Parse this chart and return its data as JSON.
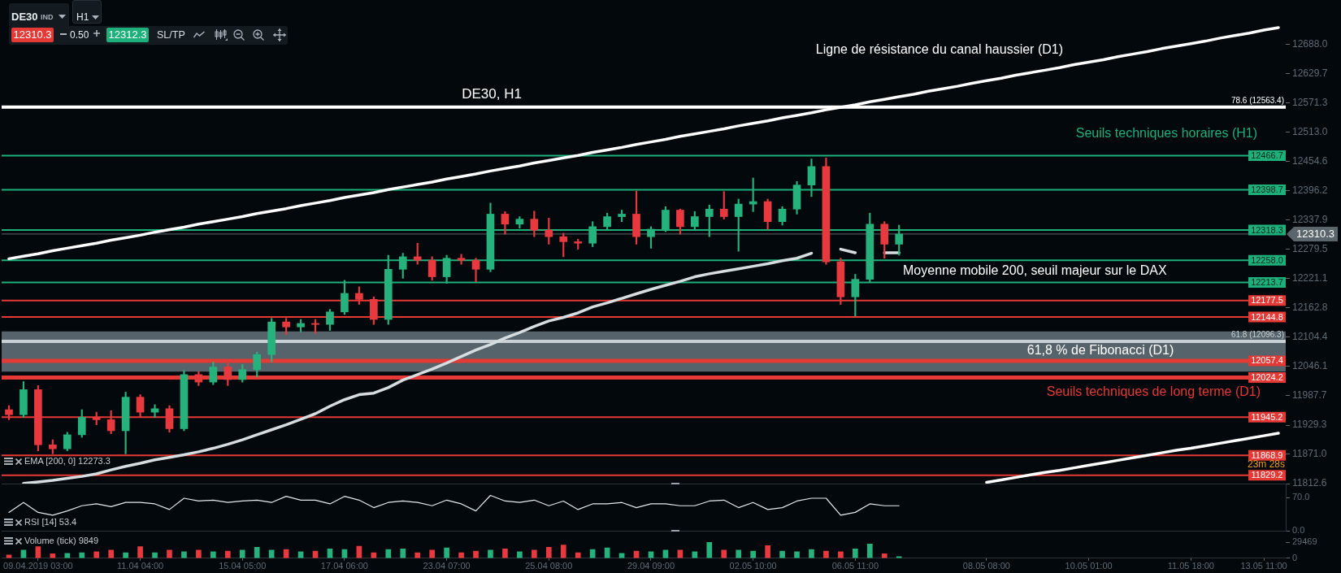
{
  "chart_data": [
    {
      "type": "candlestick",
      "title": "DE30, H1",
      "categories": [
        null,
        null,
        null,
        null,
        null,
        null,
        null,
        null,
        null,
        null,
        null,
        null,
        null,
        null,
        null,
        null,
        null,
        null,
        null,
        null,
        null,
        null,
        null,
        null,
        null,
        null,
        null,
        null,
        null,
        null,
        null,
        null,
        null,
        null,
        null,
        null,
        null,
        null,
        null,
        null,
        null,
        null,
        null,
        null,
        null,
        null,
        null,
        null,
        null,
        null,
        null,
        null,
        null,
        null,
        null,
        null,
        null,
        null,
        null,
        null,
        null,
        null,
        null,
        null,
        null,
        null,
        null,
        null,
        null,
        null,
        null,
        null,
        null,
        null,
        null,
        null,
        null,
        null,
        null,
        null,
        null,
        null,
        null,
        null,
        null,
        null,
        null,
        null
      ],
      "ohlc": [
        [
          11960,
          11968,
          11940,
          11950
        ],
        [
          11950,
          12016,
          11945,
          12000
        ],
        [
          12000,
          12008,
          11878,
          11890
        ],
        [
          11890,
          11900,
          11872,
          11882
        ],
        [
          11882,
          11915,
          11878,
          11910
        ],
        [
          11910,
          11960,
          11905,
          11945
        ],
        [
          11945,
          11955,
          11930,
          11940
        ],
        [
          11940,
          11958,
          11912,
          11918
        ],
        [
          11918,
          11995,
          11872,
          11985
        ],
        [
          11985,
          11990,
          11945,
          11955
        ],
        [
          11955,
          11970,
          11945,
          11962
        ],
        [
          11962,
          11968,
          11915,
          11922
        ],
        [
          11922,
          12038,
          11918,
          12030
        ],
        [
          12030,
          12036,
          12008,
          12015
        ],
        [
          12015,
          12055,
          12010,
          12045
        ],
        [
          12045,
          12052,
          12008,
          12020
        ],
        [
          12020,
          12050,
          12015,
          12040
        ],
        [
          12040,
          12075,
          12025,
          12070
        ],
        [
          12070,
          12142,
          12055,
          12135
        ],
        [
          12135,
          12142,
          12110,
          12125
        ],
        [
          12125,
          12140,
          12115,
          12132
        ],
        [
          12132,
          12140,
          12112,
          12130
        ],
        [
          12130,
          12160,
          12118,
          12155
        ],
        [
          12155,
          12218,
          12150,
          12192
        ],
        [
          12192,
          12205,
          12170,
          12180
        ],
        [
          12180,
          12185,
          12130,
          12140
        ],
        [
          12140,
          12268,
          12130,
          12240
        ],
        [
          12240,
          12272,
          12222,
          12265
        ],
        [
          12265,
          12292,
          12250,
          12258
        ],
        [
          12258,
          12265,
          12218,
          12225
        ],
        [
          12225,
          12268,
          12212,
          12262
        ],
        [
          12262,
          12270,
          12250,
          12258
        ],
        [
          12258,
          12262,
          12215,
          12240
        ],
        [
          12240,
          12372,
          12235,
          12350
        ],
        [
          12350,
          12355,
          12310,
          12330
        ],
        [
          12330,
          12345,
          12322,
          12340
        ],
        [
          12340,
          12356,
          12305,
          12318
        ],
        [
          12318,
          12342,
          12290,
          12305
        ],
        [
          12305,
          12312,
          12265,
          12295
        ],
        [
          12295,
          12300,
          12280,
          12292
        ],
        [
          12292,
          12335,
          12285,
          12325
        ],
        [
          12325,
          12352,
          12320,
          12345
        ],
        [
          12345,
          12358,
          12335,
          12350
        ],
        [
          12350,
          12396,
          12290,
          12305
        ],
        [
          12305,
          12325,
          12282,
          12320
        ],
        [
          12320,
          12365,
          12315,
          12358
        ],
        [
          12358,
          12360,
          12310,
          12325
        ],
        [
          12325,
          12355,
          12318,
          12345
        ],
        [
          12345,
          12368,
          12305,
          12360
        ],
        [
          12360,
          12395,
          12340,
          12345
        ],
        [
          12345,
          12380,
          12276,
          12370
        ],
        [
          12370,
          12422,
          12355,
          12375
        ],
        [
          12375,
          12380,
          12320,
          12335
        ],
        [
          12335,
          12365,
          12328,
          12360
        ],
        [
          12360,
          12415,
          12350,
          12408
        ],
        [
          12408,
          12460,
          12385,
          12445
        ],
        [
          12445,
          12462,
          12250,
          12255
        ],
        [
          12255,
          12262,
          12170,
          12185
        ],
        [
          12185,
          12230,
          12147,
          12220
        ],
        [
          12220,
          12352,
          12215,
          12330
        ],
        [
          12330,
          12335,
          12262,
          12290
        ],
        [
          12290,
          12328,
          12268,
          12310.3
        ],
        null,
        null,
        null,
        null,
        null,
        null,
        null,
        null,
        null,
        null,
        null,
        null,
        null,
        null,
        null,
        null,
        null,
        null,
        null,
        null,
        null,
        null,
        null,
        null,
        null,
        null
      ],
      "colors": [
        "#e8393f",
        "#26b27c",
        "#e8393f",
        "#e8393f",
        "#26b27c",
        "#26b27c",
        "#e8393f",
        "#e8393f",
        "#26b27c",
        "#e8393f",
        "#26b27c",
        "#e8393f",
        "#26b27c",
        "#e8393f",
        "#26b27c",
        "#e8393f",
        "#26b27c",
        "#26b27c",
        "#26b27c",
        "#e8393f",
        "#26b27c",
        "#e8393f",
        "#26b27c",
        "#26b27c",
        "#e8393f",
        "#e8393f",
        "#26b27c",
        "#26b27c",
        "#e8393f",
        "#e8393f",
        "#26b27c",
        "#e8393f",
        "#e8393f",
        "#26b27c",
        "#e8393f",
        "#26b27c",
        "#e8393f",
        "#e8393f",
        "#e8393f",
        "#e8393f",
        "#26b27c",
        "#26b27c",
        "#26b27c",
        "#e8393f",
        "#26b27c",
        "#26b27c",
        "#e8393f",
        "#26b27c",
        "#26b27c",
        "#e8393f",
        "#26b27c",
        "#26b27c",
        "#e8393f",
        "#26b27c",
        "#26b27c",
        "#26b27c",
        "#e8393f",
        "#e8393f",
        "#26b27c",
        "#26b27c",
        "#e8393f",
        "#26b27c",
        null,
        null,
        null,
        null,
        null,
        null,
        null,
        null,
        null,
        null,
        null,
        null,
        null,
        null,
        null,
        null,
        null,
        null,
        null,
        null,
        null,
        null,
        null,
        null,
        null,
        null
      ],
      "series": [
        {
          "type": "line",
          "color": "#d6dde1",
          "values": [
            null,
            11813,
            11816,
            11819,
            11823,
            11827,
            11832,
            11840,
            11847,
            11853,
            11860,
            11865,
            11870,
            11876,
            11883,
            11891,
            11900,
            11910,
            11920,
            11930,
            11941,
            11952,
            11967,
            11980,
            11990,
            11993,
            12004,
            12019,
            12030,
            12041,
            12053,
            12066,
            12079,
            12090,
            12103,
            12114,
            12126,
            12137,
            12144,
            12153,
            12165,
            12173,
            12182,
            12191,
            12200,
            12208,
            12216,
            12225,
            12231,
            12236,
            12241,
            12246,
            12251,
            12257,
            12262,
            12272,
            null,
            12280,
            12273,
            null,
            12273,
            12273,
            null,
            null,
            null,
            null,
            null,
            null,
            null,
            null,
            null,
            null,
            null,
            null,
            null,
            null,
            null,
            null,
            null,
            null,
            null,
            null,
            null,
            null,
            null,
            null,
            null,
            null
          ]
        },
        {
          "type": "line",
          "color": "#ffffff",
          "values": [
            12261,
            12266,
            12271,
            12277,
            12282,
            12287,
            12292,
            12298,
            12303,
            12308,
            12314,
            12319,
            12324,
            12330,
            12335,
            12340,
            12345,
            12351,
            12356,
            12361,
            12367,
            12372,
            12377,
            12383,
            12388,
            12393,
            12399,
            12404,
            12409,
            12414,
            12420,
            12425,
            12430,
            12436,
            12441,
            12446,
            12452,
            12457,
            12462,
            12467,
            12473,
            12478,
            12483,
            12489,
            12494,
            12499,
            12505,
            12510,
            12515,
            12520,
            12526,
            12531,
            12536,
            12542,
            12547,
            12552,
            12558,
            12563,
            12568,
            12574,
            12579,
            12584,
            12589,
            12595,
            12600,
            12605,
            12611,
            12616,
            12621,
            12627,
            12632,
            12637,
            12642,
            12648,
            12653,
            12658,
            12664,
            12669,
            12674,
            12680,
            12685,
            12690,
            12695,
            12701,
            12706,
            12711,
            12717,
            12722
          ]
        },
        {
          "type": "line",
          "color": "#ffffff",
          "values": [
            null,
            null,
            null,
            null,
            null,
            null,
            null,
            null,
            null,
            null,
            null,
            null,
            null,
            null,
            null,
            null,
            null,
            null,
            null,
            null,
            null,
            null,
            null,
            null,
            null,
            null,
            null,
            null,
            null,
            null,
            null,
            null,
            null,
            null,
            null,
            null,
            null,
            null,
            null,
            null,
            null,
            null,
            null,
            null,
            null,
            null,
            null,
            null,
            null,
            null,
            null,
            null,
            null,
            null,
            null,
            null,
            null,
            null,
            null,
            null,
            null,
            null,
            null,
            null,
            null,
            null,
            null,
            11815,
            11820,
            11825,
            11830,
            11835,
            11839,
            11844,
            11849,
            11854,
            11859,
            11864,
            11869,
            11874,
            11879,
            11883,
            11888,
            11893,
            11898,
            11903,
            11908,
            11913
          ]
        }
      ],
      "ylim": [
        11812.6,
        12777
      ],
      "yticks": [
        {
          "value": 12688,
          "label": "12688.0"
        },
        12629.7,
        12571.3,
        {
          "value": 12513,
          "label": "12513.0"
        },
        12454.6,
        12396.2,
        12337.9,
        12279.5,
        12221.1,
        12162.8,
        12104.4,
        12046.1,
        11987.7,
        11929.3,
        {
          "value": 11871,
          "label": "11871.0"
        },
        11812.6
      ],
      "ref_lines": [
        {
          "axis": "y",
          "value": 12563.4,
          "label": "78.6 (12563.4)",
          "color": "#ffffff"
        },
        {
          "axis": "y",
          "value": 12466.7,
          "label": "12466.7",
          "color": "#1db07a"
        },
        {
          "axis": "y",
          "value": 12398.7,
          "label": "12398.7",
          "color": "#1db07a"
        },
        {
          "axis": "y",
          "value": 12318.3,
          "label": "12318.3",
          "color": "#1db07a"
        },
        {
          "axis": "y",
          "value": 12310.3,
          "label": "12310.3",
          "color": "#5b656c"
        },
        {
          "axis": "y",
          "value": 12258,
          "label": "12258.0",
          "color": "#1db07a"
        },
        {
          "axis": "y",
          "value": 12213.7,
          "label": "12213.7",
          "color": "#1db07a"
        },
        {
          "axis": "y",
          "value": 12177.5,
          "label": "12177.5",
          "color": "#e53935"
        },
        {
          "axis": "y",
          "value": 12144.8,
          "label": "12144.8",
          "color": "#e53935"
        },
        {
          "axis": "y",
          "value": 12096.3,
          "label": "61.8 (12096.3)",
          "color": "#c9d1d6"
        },
        {
          "axis": "y",
          "value": 12057.4,
          "label": "12057.4",
          "color": "#e53935"
        },
        {
          "axis": "y",
          "value": 12024.2,
          "label": "12024.2",
          "color": "#e53935"
        },
        {
          "axis": "y",
          "value": 11945.2,
          "label": "11945.2",
          "color": "#e53935"
        },
        {
          "axis": "y",
          "value": 11868.9,
          "label": "11868.9",
          "color": "#e53935"
        },
        {
          "axis": "y",
          "value": 11829.2,
          "label": "11829.2",
          "color": "#e53935"
        }
      ],
      "bands": [
        {
          "axis": "y",
          "from": 12036,
          "to": 12116,
          "label": "61,8 % de Fibonacci (D1)",
          "color": "#56636b"
        }
      ],
      "annotations": [
        "Ligne de résistance du canal haussier (D1)",
        "Seuils techniques horaires (H1)",
        "Moyenne mobile 200, seuil majeur sur le DAX",
        "Seuils techniques de long terme (D1)",
        "EMA [200, 0] 12273.3",
        "23m 28s"
      ],
      "tick_labels": "y"
    },
    {
      "type": "line",
      "categories": [
        null,
        null,
        null,
        null,
        null,
        null,
        null,
        null,
        null,
        null,
        null,
        null,
        null,
        null,
        null,
        null,
        null,
        null,
        null,
        null,
        null,
        null,
        null,
        null,
        null,
        null,
        null,
        null,
        null,
        null,
        null,
        null,
        null,
        null,
        null,
        null,
        null,
        null,
        null,
        null,
        null,
        null,
        null,
        null,
        null,
        null,
        null,
        null,
        null,
        null,
        null,
        null,
        null,
        null,
        null,
        null,
        null,
        null,
        null,
        null,
        null,
        null,
        null,
        null,
        null,
        null,
        null,
        null,
        null,
        null,
        null,
        null,
        null,
        null,
        null,
        null,
        null,
        null,
        null,
        null,
        null,
        null,
        null,
        null,
        null,
        null,
        null,
        null
      ],
      "series": [
        {
          "color": "#e6e9eb",
          "values": [
            39,
            60,
            39,
            33,
            42,
            53,
            57,
            51,
            60,
            60,
            57,
            45,
            69,
            63,
            65,
            60,
            63,
            65,
            60,
            73,
            65,
            65,
            57,
            73,
            65,
            49,
            60,
            63,
            60,
            53,
            65,
            57,
            42,
            75,
            63,
            60,
            65,
            53,
            63,
            45,
            57,
            57,
            60,
            49,
            57,
            57,
            53,
            53,
            63,
            65,
            49,
            60,
            45,
            49,
            63,
            69,
            69,
            33,
            39,
            57,
            53,
            53,
            null,
            null,
            null,
            null,
            null,
            null,
            null,
            null,
            null,
            null,
            null,
            null,
            null,
            null,
            null,
            null,
            null,
            null,
            null,
            null,
            null,
            null,
            null,
            null,
            null,
            null
          ]
        }
      ],
      "ylim": [
        0,
        100
      ],
      "yticks": [
        {
          "value": 70,
          "label": "70.0"
        },
        {
          "value": 0,
          "label": "0.0"
        }
      ],
      "annotations": [
        "RSI [14] 53.4"
      ],
      "tick_labels": "y"
    },
    {
      "type": "bar",
      "categories": [
        null,
        null,
        "09.04.2019 03:00",
        null,
        null,
        null,
        null,
        null,
        null,
        "11.04 04:00",
        null,
        null,
        null,
        null,
        null,
        null,
        "15.04 05:00",
        null,
        null,
        null,
        null,
        null,
        null,
        "17.04 06:00",
        null,
        null,
        null,
        null,
        null,
        null,
        "23.04 07:00",
        null,
        null,
        null,
        null,
        null,
        null,
        "25.04 08:00",
        null,
        null,
        null,
        null,
        null,
        null,
        "29.04 09:00",
        null,
        null,
        null,
        null,
        null,
        null,
        "02.05 10:00",
        null,
        null,
        null,
        null,
        null,
        null,
        "06.05 11:00",
        null,
        null,
        null,
        null,
        null,
        null,
        null,
        null,
        "08.05 08:00",
        null,
        null,
        null,
        null,
        null,
        null,
        "10.05 01:00",
        null,
        null,
        null,
        null,
        null,
        null,
        "11.05 18:00",
        null,
        null,
        null,
        null,
        "13.05 11:00",
        null
      ],
      "values": [
        6000,
        15000,
        21000,
        8000,
        9000,
        10000,
        12000,
        15000,
        10000,
        21000,
        10000,
        15000,
        12000,
        15000,
        12000,
        13000,
        15000,
        20000,
        15000,
        16000,
        12000,
        13000,
        17000,
        16000,
        22000,
        10000,
        16000,
        17000,
        10000,
        15000,
        19000,
        10000,
        13000,
        15000,
        17000,
        12000,
        15000,
        20000,
        24000,
        10000,
        16000,
        19000,
        9000,
        13000,
        12000,
        15000,
        15000,
        12000,
        29000,
        15000,
        15000,
        13000,
        23000,
        13000,
        12000,
        16000,
        13000,
        12000,
        17000,
        26000,
        8000,
        3000,
        null,
        null,
        null,
        null,
        null,
        null,
        null,
        null,
        null,
        null,
        null,
        null,
        null,
        null,
        null,
        null,
        null,
        null,
        null,
        null,
        null,
        null,
        null,
        null,
        null,
        null
      ],
      "colors": [
        "#e8393f",
        "#26b27c",
        "#e8393f",
        "#e8393f",
        "#26b27c",
        "#26b27c",
        "#e8393f",
        "#e8393f",
        "#26b27c",
        "#e8393f",
        "#26b27c",
        "#e8393f",
        "#26b27c",
        "#e8393f",
        "#26b27c",
        "#e8393f",
        "#26b27c",
        "#26b27c",
        "#26b27c",
        "#e8393f",
        "#26b27c",
        "#e8393f",
        "#26b27c",
        "#26b27c",
        "#e8393f",
        "#e8393f",
        "#26b27c",
        "#26b27c",
        "#e8393f",
        "#e8393f",
        "#26b27c",
        "#e8393f",
        "#e8393f",
        "#26b27c",
        "#e8393f",
        "#26b27c",
        "#e8393f",
        "#e8393f",
        "#e8393f",
        "#e8393f",
        "#26b27c",
        "#26b27c",
        "#26b27c",
        "#e8393f",
        "#26b27c",
        "#26b27c",
        "#e8393f",
        "#26b27c",
        "#26b27c",
        "#e8393f",
        "#26b27c",
        "#26b27c",
        "#e8393f",
        "#26b27c",
        "#26b27c",
        "#26b27c",
        "#e8393f",
        "#e8393f",
        "#26b27c",
        "#26b27c",
        "#e8393f",
        "#26b27c",
        null,
        null,
        null,
        null,
        null,
        null,
        null,
        null,
        null,
        null,
        null,
        null,
        null,
        null,
        null,
        null,
        null,
        null,
        null,
        null,
        null,
        null,
        null,
        null,
        null,
        null
      ],
      "ylim": [
        0,
        29469
      ],
      "yticks": [
        0,
        29469
      ],
      "annotations": [
        "Volume (tick) 9849"
      ]
    },
    {
      "type": "other",
      "annotations": [
        "DE30",
        "IND",
        "H1",
        "12310.3",
        "0.50",
        "12312.3",
        "SL/TP"
      ]
    }
  ]
}
